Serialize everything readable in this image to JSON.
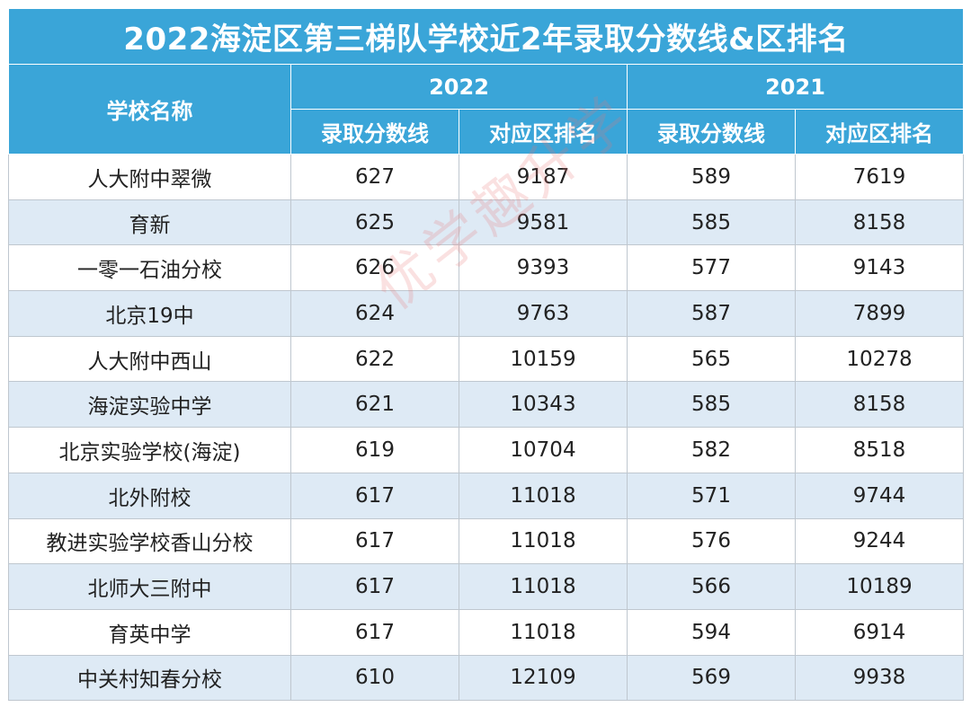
{
  "title": "2022海淀区第三梯队学校近2年录取分数线&区排名",
  "header": {
    "school_col": "学校名称",
    "year_a": "2022",
    "year_b": "2021",
    "score_label": "录取分数线",
    "rank_label": "对应区排名"
  },
  "rows": [
    {
      "school": "人大附中翠微",
      "s2022": "627",
      "r2022": "9187",
      "s2021": "589",
      "r2021": "7619"
    },
    {
      "school": "育新",
      "s2022": "625",
      "r2022": "9581",
      "s2021": "585",
      "r2021": "8158"
    },
    {
      "school": "一零一石油分校",
      "s2022": "626",
      "r2022": "9393",
      "s2021": "577",
      "r2021": "9143"
    },
    {
      "school": "北京19中",
      "s2022": "624",
      "r2022": "9763",
      "s2021": "587",
      "r2021": "7899"
    },
    {
      "school": "人大附中西山",
      "s2022": "622",
      "r2022": "10159",
      "s2021": "565",
      "r2021": "10278"
    },
    {
      "school": "海淀实验中学",
      "s2022": "621",
      "r2022": "10343",
      "s2021": "585",
      "r2021": "8158"
    },
    {
      "school": "北京实验学校(海淀)",
      "s2022": "619",
      "r2022": "10704",
      "s2021": "582",
      "r2021": "8518"
    },
    {
      "school": "北外附校",
      "s2022": "617",
      "r2022": "11018",
      "s2021": "571",
      "r2021": "9744"
    },
    {
      "school": "教进实验学校香山分校",
      "s2022": "617",
      "r2022": "11018",
      "s2021": "576",
      "r2021": "9244"
    },
    {
      "school": "北师大三附中",
      "s2022": "617",
      "r2022": "11018",
      "s2021": "566",
      "r2021": "10189"
    },
    {
      "school": "育英中学",
      "s2022": "617",
      "r2022": "11018",
      "s2021": "594",
      "r2021": "6914"
    },
    {
      "school": "中关村知春分校",
      "s2022": "610",
      "r2022": "12109",
      "s2021": "569",
      "r2021": "9938"
    }
  ],
  "watermark": "优学趣升学",
  "colors": {
    "header_bg": "#3aa5d8",
    "stripe": "#deeaf5",
    "watermark": "#e67878"
  }
}
